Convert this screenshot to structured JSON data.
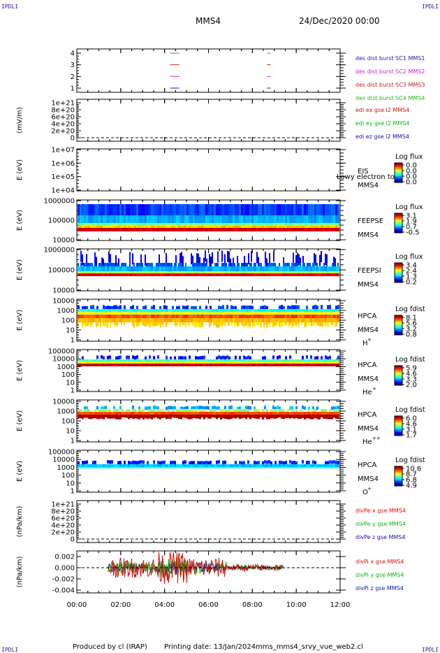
{
  "header": {
    "corner_tag": "IPDLI",
    "spacecraft": "MMS4",
    "date_time": "24/Dec/2020 00:00"
  },
  "footer": {
    "produced_by": "Produced by cl (IRAP)",
    "printing_date": "Printing date: 13/Jan/2024",
    "script_name": "mms_mms4_srvy_vue_web2.cl"
  },
  "colors": {
    "mms1": "#1a1aa8",
    "mms2": "#cc1acc",
    "mms3": "#cc1a1a",
    "mms4": "#1ab81a",
    "x_comp": "#d01010",
    "y_comp": "#10b010",
    "z_comp": "#1010b0"
  },
  "chart_data": [
    {
      "type": "line",
      "id": "burst",
      "xlim": [
        "00:00",
        "12:00"
      ],
      "yticks": [
        "4",
        "3",
        "2",
        "1"
      ],
      "series": [
        {
          "name": "des dist burst SC1 MMS1",
          "y": 1,
          "segments": [
            [
              "04:15",
              "04:40"
            ],
            [
              "08:40",
              "08:50"
            ]
          ]
        },
        {
          "name": "des dist burst SC2 MMS2",
          "y": 2,
          "segments": [
            [
              "04:15",
              "04:40"
            ],
            [
              "08:40",
              "08:50"
            ]
          ]
        },
        {
          "name": "des dist burst SC3 MMS3",
          "y": 3,
          "segments": [
            [
              "04:15",
              "04:40"
            ],
            [
              "08:40",
              "08:50"
            ]
          ]
        },
        {
          "name": "des dist burst SC4 MMS4",
          "y": 4,
          "segments": [
            [
              "04:15",
              "04:40"
            ],
            [
              "08:40",
              "08:50"
            ]
          ]
        }
      ]
    },
    {
      "type": "line",
      "id": "edi",
      "ylabel": "(mV/m)",
      "yticks": [
        "1e+21",
        "8e+20",
        "6e+20",
        "4e+20",
        "2e+20",
        "0"
      ],
      "ylim": [
        0,
        1e+21
      ],
      "series": [
        {
          "name": "edi ex gse l2 MMS4"
        },
        {
          "name": "edi ey gse l2 MMS4"
        },
        {
          "name": "edi ez gse l2 MMS4"
        }
      ]
    },
    {
      "type": "heatmap",
      "id": "eis",
      "ylabel": "E (eV)",
      "yticks": [
        "1e+07",
        "1e+06",
        "1e+05",
        "1e+04"
      ],
      "instrument": "EIS",
      "label_lines": [
        "EIS",
        "MMS4"
      ],
      "overlap_text": "Lowy electron to",
      "colorbar_title": "Log flux",
      "colorbar_ticks": [
        "0.0",
        "0.0",
        "0.0",
        "0.0"
      ]
    },
    {
      "type": "heatmap",
      "id": "feepse",
      "ylabel": "E (eV)",
      "yticks": [
        "1000000",
        "100000",
        "10000"
      ],
      "label_lines": [
        "FEEPSE",
        "MMS4"
      ],
      "colorbar_title": "Log flux",
      "colorbar_ticks": [
        "3.1",
        "1.9",
        "0.7",
        "-0.5"
      ]
    },
    {
      "type": "heatmap",
      "id": "feepsi",
      "ylabel": "E (eV)",
      "yticks": [
        "1000000",
        "100000",
        "10000"
      ],
      "label_lines": [
        "FEEPSI",
        "MMS4"
      ],
      "colorbar_title": "Log flux",
      "colorbar_ticks": [
        "3.4",
        "2.4",
        "1.3",
        "0.2"
      ]
    },
    {
      "type": "heatmap",
      "id": "hpca_h",
      "ylabel": "E (eV)",
      "yticks": [
        "10000",
        "1000",
        "100",
        "10",
        "1"
      ],
      "label_lines": [
        "HPCA",
        "MMS4"
      ],
      "species": "H",
      "charge": "+",
      "colorbar_title": "Log fdist",
      "colorbar_ticks": [
        "8.1",
        "5.6",
        "3.2",
        "0.8"
      ]
    },
    {
      "type": "heatmap",
      "id": "hpca_he",
      "ylabel": "E (eV)",
      "yticks": [
        "100000",
        "10000",
        "1000",
        "100",
        "10",
        "1"
      ],
      "label_lines": [
        "HPCA",
        "MMS4"
      ],
      "species": "He",
      "charge": "+",
      "colorbar_title": "Log fdist",
      "colorbar_ticks": [
        "5.9",
        "4.6",
        "3.3",
        "2.0"
      ]
    },
    {
      "type": "heatmap",
      "id": "hpca_hepp",
      "ylabel": "E (eV)",
      "yticks": [
        "10000",
        "1000",
        "100",
        "10",
        "1"
      ],
      "label_lines": [
        "HPCA",
        "MMS4"
      ],
      "species": "He",
      "charge": "++",
      "colorbar_title": "Log fdist",
      "colorbar_ticks": [
        "6.0",
        "4.6",
        "3.1",
        "1.7"
      ]
    },
    {
      "type": "heatmap",
      "id": "hpca_o",
      "ylabel": "E (eV)",
      "yticks": [
        "100000",
        "10000",
        "1000",
        "100",
        "10",
        "1"
      ],
      "label_lines": [
        "HPCA",
        "MMS4"
      ],
      "species": "O",
      "charge": "+",
      "colorbar_title": "Log fdist",
      "colorbar_ticks": [
        "10.6",
        "8.7",
        "6.8",
        "4.9"
      ]
    },
    {
      "type": "line",
      "id": "divpe",
      "ylabel": "(nPa/km)",
      "yticks": [
        "1e+21",
        "8e+20",
        "6e+20",
        "4e+20",
        "2e+20",
        "0"
      ],
      "ylim": [
        0,
        1e+21
      ],
      "series": [
        {
          "name": "divPe x gse MMS4"
        },
        {
          "name": "divPe y gse MMS4"
        },
        {
          "name": "divPe z gse MMS4"
        }
      ]
    },
    {
      "type": "line",
      "id": "divpi",
      "ylabel": "(nPa/km)",
      "yticks": [
        "0.002",
        "0.000",
        "-0.002",
        "-0.004"
      ],
      "ylim": [
        -0.0045,
        0.003
      ],
      "series": [
        {
          "name": "divPi x gse MMS4"
        },
        {
          "name": "divPi y gse MMS4"
        },
        {
          "name": "divPi z gse MMS4"
        }
      ]
    }
  ],
  "x_axis": {
    "ticks": [
      "00:00",
      "02:00",
      "04:00",
      "06:00",
      "08:00",
      "10:00",
      "12:00"
    ]
  }
}
